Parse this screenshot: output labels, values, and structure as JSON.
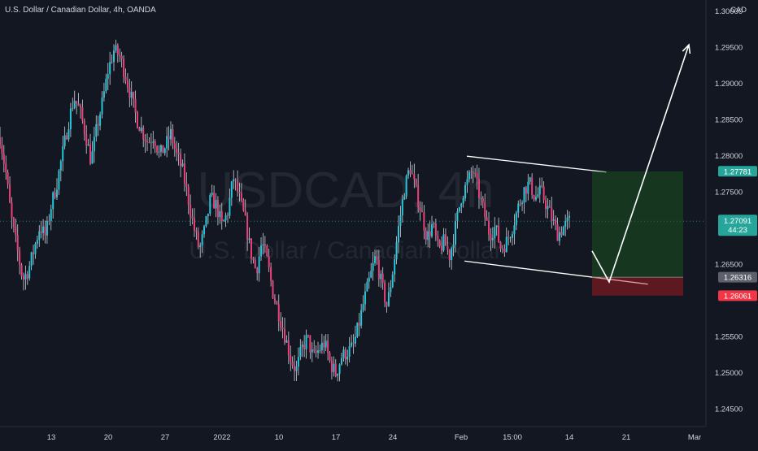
{
  "header": {
    "symbol_line": "U.S. Dollar / Canadian Dollar, 4h, OANDA"
  },
  "watermark": {
    "ticker": "USDCAD, 4h",
    "name": "U.S. Dollar / Canadian Dollar"
  },
  "chart_data": {
    "type": "candlestick",
    "currency_label": "CAD",
    "y_ticks": [
      "1.30000",
      "1.29500",
      "1.29000",
      "1.28500",
      "1.28000",
      "1.27500",
      "1.26500",
      "1.25500",
      "1.25000",
      "1.24500"
    ],
    "y_tick_values": [
      1.3,
      1.295,
      1.29,
      1.285,
      1.28,
      1.275,
      1.265,
      1.255,
      1.25,
      1.245
    ],
    "ylim": [
      1.2425,
      1.3015
    ],
    "x_ticks": [
      "13",
      "20",
      "27",
      "2022",
      "10",
      "17",
      "24",
      "Feb",
      "15:00",
      "14",
      "21",
      "Mar"
    ],
    "x_tick_slots": [
      9,
      19,
      29,
      39,
      49,
      59,
      69,
      81,
      90,
      100,
      110,
      122
    ],
    "x_slot_range": [
      0,
      124
    ],
    "current_price": 1.27091,
    "current_price_label": "1.27091",
    "countdown": "44:23",
    "take_profit": 1.27781,
    "take_profit_label": "1.27781",
    "entry": 1.26316,
    "entry_label": "1.26316",
    "stop_loss": 1.26061,
    "stop_loss_label": "1.26061",
    "close_path": [
      [
        0,
        1.2825
      ],
      [
        1,
        1.2778
      ],
      [
        2,
        1.2712
      ],
      [
        3,
        1.2671
      ],
      [
        4,
        1.2628
      ],
      [
        5,
        1.2642
      ],
      [
        6,
        1.2671
      ],
      [
        7,
        1.2702
      ],
      [
        8,
        1.2688
      ],
      [
        9,
        1.2731
      ],
      [
        10,
        1.2762
      ],
      [
        11,
        1.2803
      ],
      [
        12,
        1.2845
      ],
      [
        13,
        1.288
      ],
      [
        14,
        1.2862
      ],
      [
        15,
        1.283
      ],
      [
        16,
        1.2792
      ],
      [
        17,
        1.2838
      ],
      [
        18,
        1.2874
      ],
      [
        19,
        1.2918
      ],
      [
        20,
        1.2945
      ],
      [
        21,
        1.2938
      ],
      [
        22,
        1.2912
      ],
      [
        23,
        1.2882
      ],
      [
        24,
        1.2851
      ],
      [
        25,
        1.2833
      ],
      [
        26,
        1.2818
      ],
      [
        27,
        1.2828
      ],
      [
        28,
        1.28
      ],
      [
        29,
        1.2812
      ],
      [
        30,
        1.283
      ],
      [
        31,
        1.2801
      ],
      [
        32,
        1.2781
      ],
      [
        33,
        1.2742
      ],
      [
        34,
        1.2702
      ],
      [
        35,
        1.2669
      ],
      [
        36,
        1.2698
      ],
      [
        37,
        1.2741
      ],
      [
        38,
        1.2731
      ],
      [
        39,
        1.2702
      ],
      [
        40,
        1.2722
      ],
      [
        41,
        1.277
      ],
      [
        42,
        1.2742
      ],
      [
        43,
        1.2712
      ],
      [
        44,
        1.2668
      ],
      [
        45,
        1.264
      ],
      [
        46,
        1.2681
      ],
      [
        47,
        1.2651
      ],
      [
        48,
        1.2608
      ],
      [
        49,
        1.2581
      ],
      [
        50,
        1.2552
      ],
      [
        51,
        1.2521
      ],
      [
        52,
        1.2502
      ],
      [
        53,
        1.2532
      ],
      [
        54,
        1.2548
      ],
      [
        55,
        1.252
      ],
      [
        56,
        1.2531
      ],
      [
        57,
        1.2541
      ],
      [
        58,
        1.2513
      ],
      [
        59,
        1.2498
      ],
      [
        60,
        1.2522
      ],
      [
        61,
        1.2528
      ],
      [
        62,
        1.2535
      ],
      [
        63,
        1.2565
      ],
      [
        64,
        1.2601
      ],
      [
        65,
        1.2631
      ],
      [
        66,
        1.2661
      ],
      [
        67,
        1.2622
      ],
      [
        68,
        1.2591
      ],
      [
        69,
        1.2641
      ],
      [
        70,
        1.27
      ],
      [
        71,
        1.2752
      ],
      [
        72,
        1.2785
      ],
      [
        73,
        1.2752
      ],
      [
        74,
        1.2722
      ],
      [
        75,
        1.2686
      ],
      [
        76,
        1.2705
      ],
      [
        77,
        1.2668
      ],
      [
        78,
        1.2681
      ],
      [
        79,
        1.2661
      ],
      [
        80,
        1.2701
      ],
      [
        81,
        1.2742
      ],
      [
        82,
        1.2761
      ],
      [
        83,
        1.2781
      ],
      [
        84,
        1.2751
      ],
      [
        85,
        1.2721
      ],
      [
        86,
        1.2691
      ],
      [
        87,
        1.2701
      ],
      [
        88,
        1.2671
      ],
      [
        89,
        1.2681
      ],
      [
        90,
        1.2701
      ],
      [
        91,
        1.2728
      ],
      [
        92,
        1.2752
      ],
      [
        93,
        1.2762
      ],
      [
        94,
        1.2741
      ],
      [
        95,
        1.2751
      ],
      [
        96,
        1.2731
      ],
      [
        97,
        1.2711
      ],
      [
        98,
        1.2691
      ],
      [
        99,
        1.2701
      ],
      [
        100,
        1.2709
      ]
    ]
  }
}
